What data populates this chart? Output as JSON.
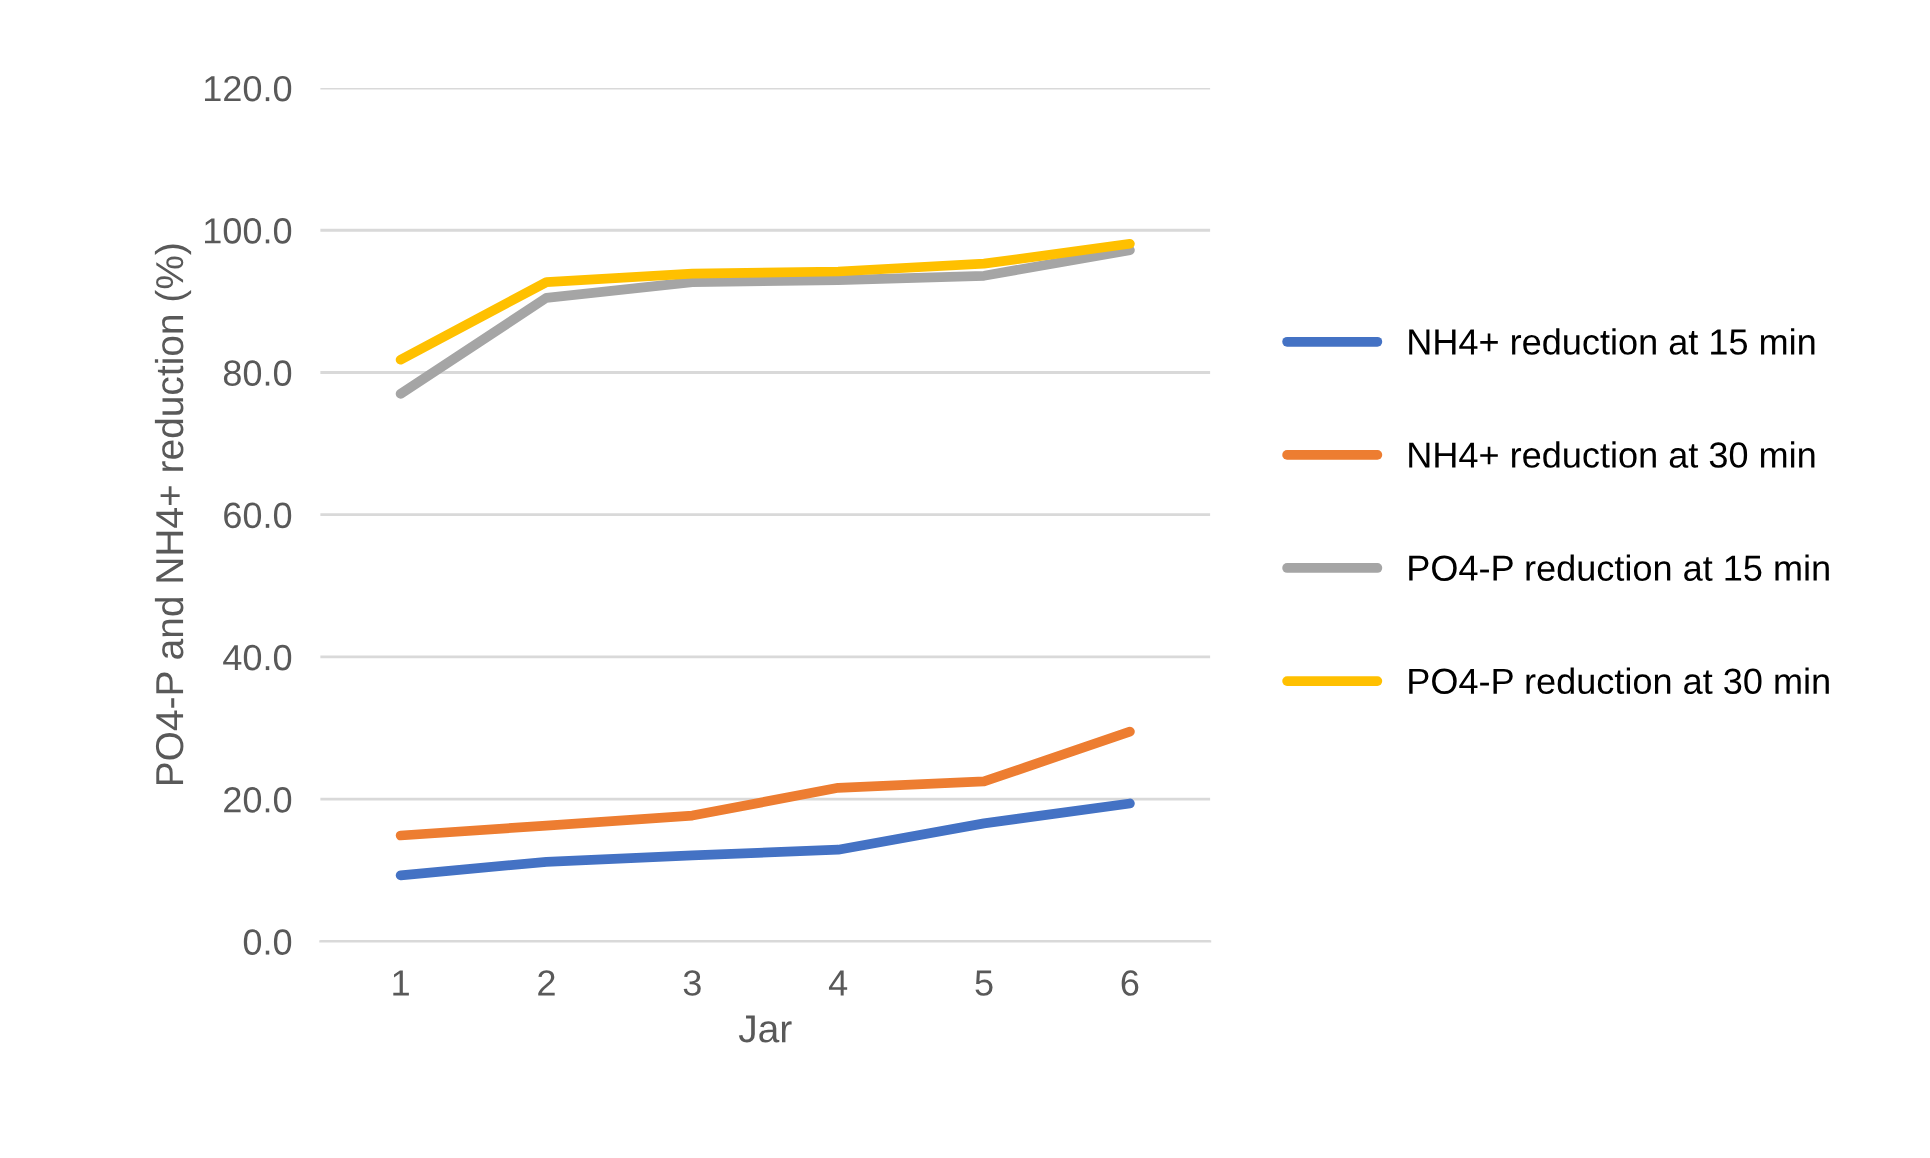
{
  "chart_data": {
    "type": "line",
    "xlabel": "Jar",
    "ylabel": "PO4-P and NH4+ reduction (%)",
    "categories": [
      "1",
      "2",
      "3",
      "4",
      "5",
      "6"
    ],
    "series": [
      {
        "name": "NH4+ reduction at 15 min",
        "color": "#4472c4",
        "values": [
          9.3,
          11.2,
          12.1,
          12.9,
          16.6,
          19.4
        ]
      },
      {
        "name": "NH4+ reduction at 30 min",
        "color": "#ed7d31",
        "values": [
          14.9,
          16.3,
          17.7,
          21.6,
          22.5,
          29.5
        ]
      },
      {
        "name": "PO4-P reduction at 15 min",
        "color": "#a5a5a5",
        "values": [
          77.0,
          90.5,
          92.7,
          93.0,
          93.6,
          97.2
        ]
      },
      {
        "name": "PO4-P reduction at 30 min",
        "color": "#ffc000",
        "values": [
          81.8,
          92.7,
          93.9,
          94.2,
          95.3,
          98.1
        ]
      }
    ],
    "ylim": [
      0,
      120
    ],
    "yticks": [
      {
        "value": 0,
        "label": "0.0"
      },
      {
        "value": 20,
        "label": "20.0"
      },
      {
        "value": 40,
        "label": "40.0"
      },
      {
        "value": 60,
        "label": "60.0"
      },
      {
        "value": 80,
        "label": "80.0"
      },
      {
        "value": 100,
        "label": "100.0"
      },
      {
        "value": 120,
        "label": "120.0"
      }
    ],
    "grid": "y",
    "legend": "right",
    "marker": "none",
    "line_style": "solid"
  }
}
